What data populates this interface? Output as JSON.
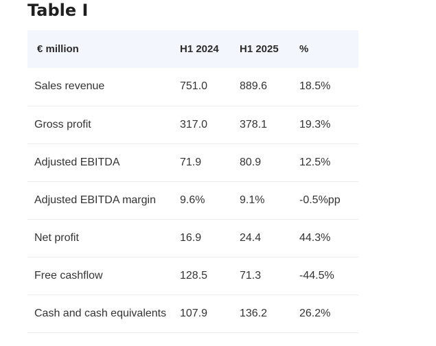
{
  "title": "Table I",
  "table": {
    "headers": [
      "€ million",
      "H1 2024",
      "H1 2025",
      "%"
    ],
    "rows": [
      [
        "Sales revenue",
        "751.0",
        "889.6",
        "18.5%"
      ],
      [
        "Gross profit",
        "317.0",
        "378.1",
        "19.3%"
      ],
      [
        "Adjusted EBITDA",
        "71.9",
        "80.9",
        "12.5%"
      ],
      [
        "Adjusted EBITDA margin",
        "9.6%",
        "9.1%",
        "-0.5%pp"
      ],
      [
        "Net profit",
        "16.9",
        "24.4",
        "44.3%"
      ],
      [
        "Free cashflow",
        "128.5",
        "71.3",
        "-44.5%"
      ],
      [
        "Cash and cash equivalents",
        "107.9",
        "136.2",
        "26.2%"
      ]
    ]
  },
  "colors": {
    "header_background": "#f3f7fd",
    "row_divider": "#ececec",
    "text": "#333333",
    "title": "#1f1f1f"
  }
}
